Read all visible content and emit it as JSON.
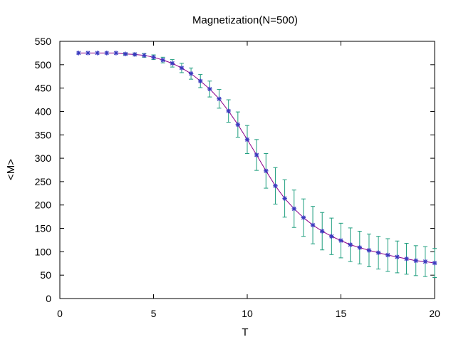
{
  "chart_data": {
    "type": "line",
    "title": "Magnetization(N=500)",
    "xlabel": "T",
    "ylabel": "<M>",
    "xlim": [
      0,
      20
    ],
    "ylim": [
      0,
      550
    ],
    "xticks": [
      0,
      5,
      10,
      15,
      20
    ],
    "yticks": [
      0,
      50,
      100,
      150,
      200,
      250,
      300,
      350,
      400,
      450,
      500,
      550
    ],
    "grid": false,
    "legend": "none",
    "colors": {
      "line": "#8b0089",
      "marker": "#3b3bbf",
      "errorbar": "#1e9e7e",
      "axis": "#000000"
    },
    "series": [
      {
        "x": [
          1,
          1.5,
          2,
          2.5,
          3,
          3.5,
          4,
          4.5,
          5,
          5.5,
          6,
          6.5,
          7,
          7.5,
          8,
          8.5,
          9,
          9.5,
          10,
          10.5,
          11,
          11.5,
          12,
          12.5,
          13,
          13.5,
          14,
          14.5,
          15,
          15.5,
          16,
          16.5,
          17,
          17.5,
          18,
          18.5,
          19,
          19.5,
          20
        ],
        "y": [
          525,
          525,
          525,
          525,
          525,
          523,
          522,
          520,
          516,
          510,
          503,
          493,
          481,
          465,
          448,
          427,
          401,
          372,
          340,
          307,
          273,
          241,
          214,
          192,
          173,
          157,
          144,
          133,
          124,
          115,
          109,
          103,
          98,
          93,
          89,
          85,
          81,
          79,
          76
        ],
        "error": [
          0,
          0,
          0,
          0,
          0,
          2,
          3,
          4,
          5,
          6,
          8,
          10,
          12,
          14,
          17,
          20,
          24,
          27,
          30,
          33,
          37,
          39,
          40,
          40,
          40,
          40,
          40,
          39,
          37,
          36,
          35,
          35,
          35,
          35,
          34,
          33,
          32,
          32,
          31
        ]
      }
    ]
  }
}
